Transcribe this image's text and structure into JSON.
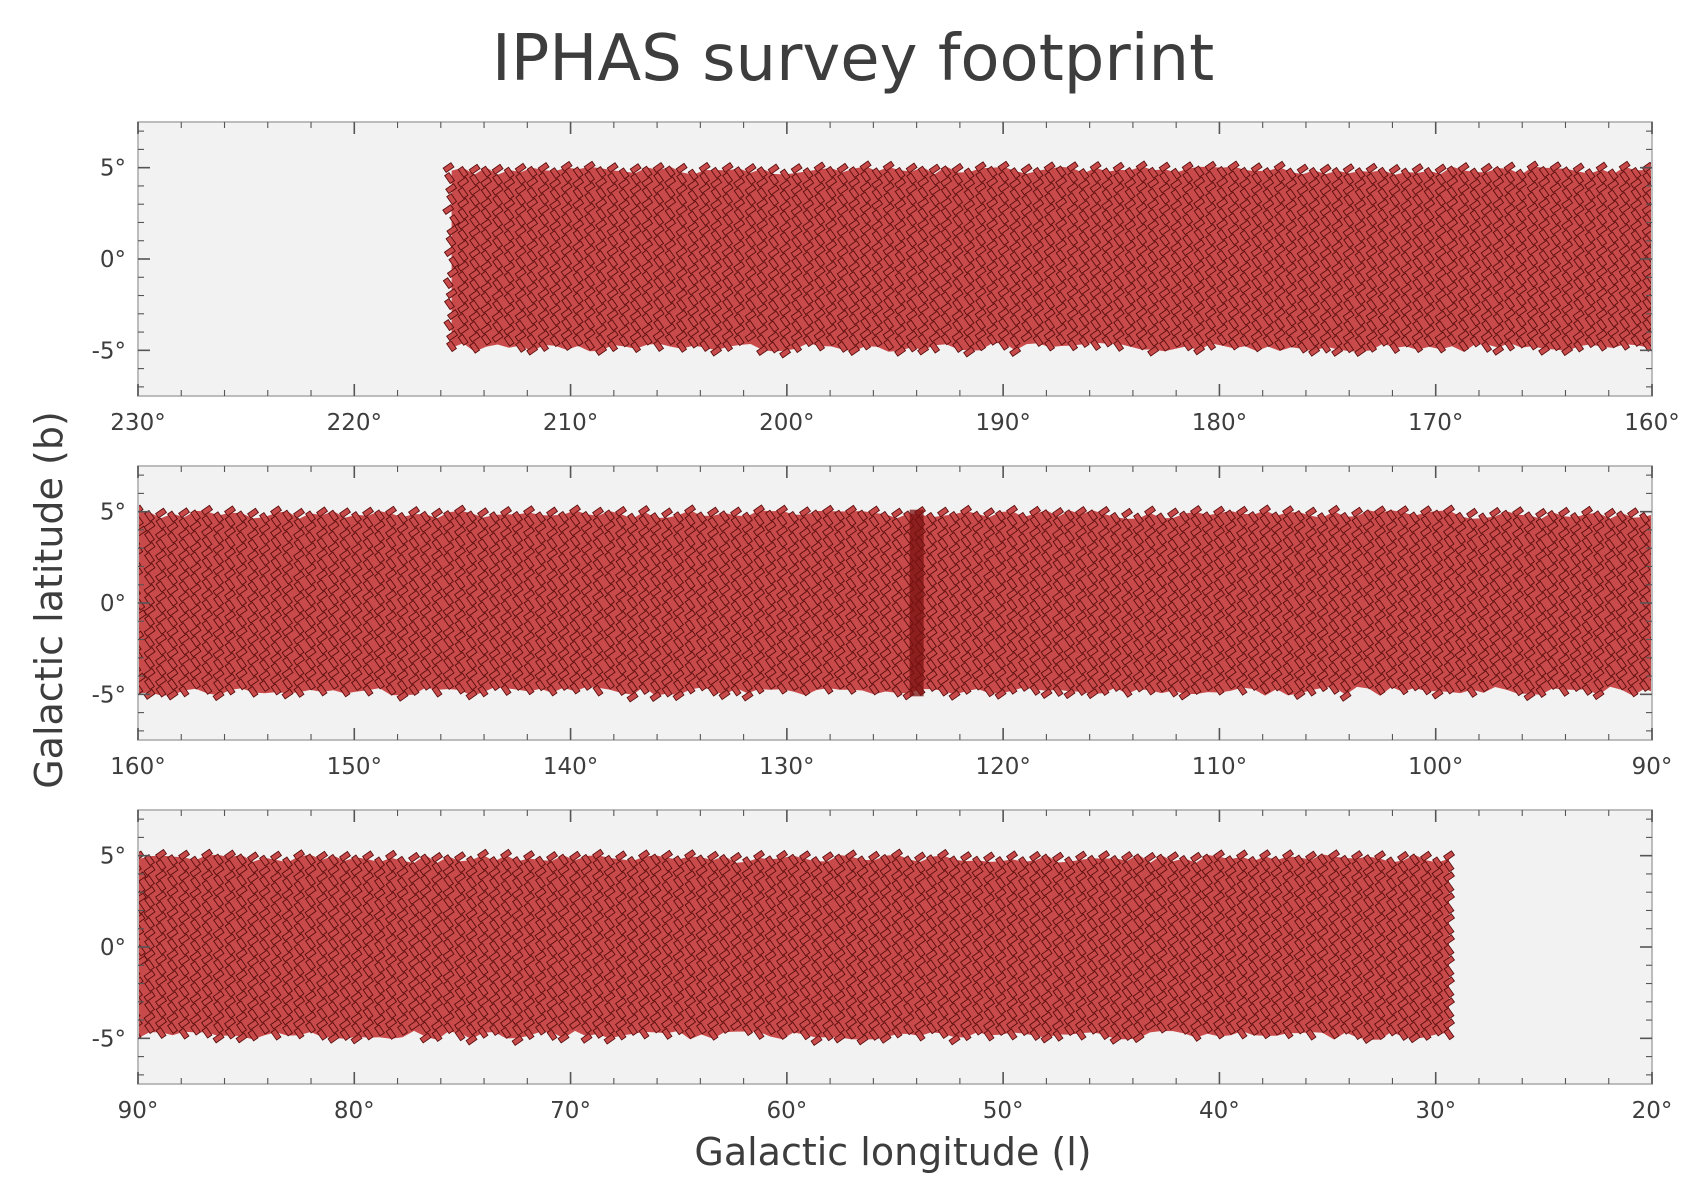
{
  "figure": {
    "title": "IPHAS survey footprint",
    "ylabel": "Galactic latitude (b)",
    "xlabel": "Galactic longitude (l)"
  },
  "colors": {
    "background": "#f2f2f2",
    "frame": "#bcbcbc",
    "tile_fill": "#c94a4a",
    "tile_edge": "#5a0e0e",
    "text": "#3d3d3d"
  },
  "chart_data": [
    {
      "type": "scatter",
      "panel": "top",
      "xlim": [
        230,
        160
      ],
      "ylim": [
        -7.5,
        7.5
      ],
      "xticks": [
        230,
        220,
        210,
        200,
        190,
        180,
        170,
        160
      ],
      "xtick_labels": [
        "230°",
        "220°",
        "210°",
        "200°",
        "190°",
        "180°",
        "170°",
        "160°"
      ],
      "yticks": [
        5,
        0,
        -5
      ],
      "ytick_labels": [
        "5°",
        "0°",
        "-5°"
      ],
      "grid": false,
      "footprint": {
        "l_start": 215.5,
        "l_end": 160,
        "b_min": -5,
        "b_max": 5
      }
    },
    {
      "type": "scatter",
      "panel": "middle",
      "xlim": [
        160,
        90
      ],
      "ylim": [
        -7.5,
        7.5
      ],
      "xticks": [
        160,
        150,
        140,
        130,
        120,
        110,
        100,
        90
      ],
      "xtick_labels": [
        "160°",
        "150°",
        "140°",
        "130°",
        "120°",
        "110°",
        "100°",
        "90°"
      ],
      "yticks": [
        5,
        0,
        -5
      ],
      "ytick_labels": [
        "5°",
        "0°",
        "-5°"
      ],
      "grid": false,
      "footprint": {
        "l_start": 160,
        "l_end": 90,
        "b_min": -5,
        "b_max": 5,
        "overlap_l": 124
      }
    },
    {
      "type": "scatter",
      "panel": "bottom",
      "xlim": [
        90,
        20
      ],
      "ylim": [
        -7.5,
        7.5
      ],
      "xticks": [
        90,
        80,
        70,
        60,
        50,
        40,
        30,
        20
      ],
      "xtick_labels": [
        "90°",
        "80°",
        "70°",
        "60°",
        "50°",
        "40°",
        "30°",
        "20°"
      ],
      "yticks": [
        5,
        0,
        -5
      ],
      "ytick_labels": [
        "5°",
        "0°",
        "-5°"
      ],
      "grid": false,
      "footprint": {
        "l_start": 90,
        "l_end": 29.5,
        "b_min": -5,
        "b_max": 5
      }
    }
  ]
}
